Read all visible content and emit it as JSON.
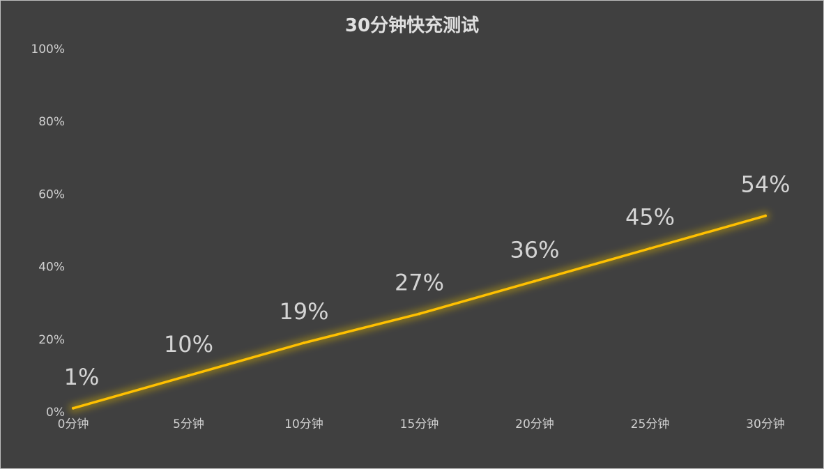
{
  "chart_data": {
    "type": "line",
    "title": "30分钟快充测试",
    "xlabel": "",
    "ylabel": "",
    "categories": [
      "0分钟",
      "5分钟",
      "10分钟",
      "15分钟",
      "20分钟",
      "25分钟",
      "30分钟"
    ],
    "series": [
      {
        "values": [
          1,
          10,
          19,
          27,
          36,
          45,
          54
        ],
        "data_labels": [
          "1%",
          "10%",
          "19%",
          "27%",
          "36%",
          "45%",
          "54%"
        ],
        "color": "#ffc000"
      }
    ],
    "ylim": [
      0,
      100
    ],
    "y_ticks": [
      0,
      20,
      40,
      60,
      80,
      100
    ],
    "y_tick_labels": [
      "0%",
      "20%",
      "40%",
      "60%",
      "80%",
      "100%"
    ],
    "grid": false,
    "legend": "none",
    "background_color": "#404040"
  }
}
